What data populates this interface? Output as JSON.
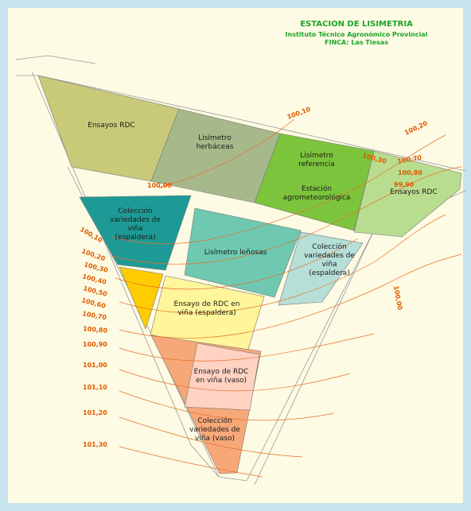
{
  "header": {
    "title": "ESTACION DE LISIMETRIA",
    "institution": "Instituto Técnico Agronómico Provincial",
    "farm": "FINCA: Las Tiesas"
  },
  "plots": [
    {
      "lines": [
        "Ensayos RDC"
      ]
    },
    {
      "lines": [
        "Lisímetro",
        "herbáceas"
      ]
    },
    {
      "lines": [
        "Lisímetro",
        "referencia"
      ]
    },
    {
      "lines": [
        "Estación",
        "agrometeorológica"
      ]
    },
    {
      "lines": [
        "Ensayos RDC"
      ]
    },
    {
      "lines": [
        "Colección",
        "variedades de",
        "viña",
        "(espaldera)"
      ]
    },
    {
      "lines": [
        "Lisímetro leñosas"
      ]
    },
    {
      "lines": [
        "Colección",
        "variedades de",
        "viña",
        "(espaldera)"
      ]
    },
    {
      "lines": [
        "Ensayo de RDC en",
        "viña (espaldera)"
      ]
    },
    {
      "lines": [
        "Ensayo de RDC",
        "en viña (vaso)"
      ]
    },
    {
      "lines": [
        "Colección",
        "variedades de",
        "viña (vaso)"
      ]
    }
  ],
  "contours": [
    "100,10",
    "100,20",
    "100,30",
    "100,70",
    "100,80",
    "99,90",
    "100,00",
    "100,10",
    "100,20",
    "100,30",
    "100,40",
    "100,50",
    "100,60",
    "100,70",
    "100,80",
    "100,90",
    "101,00",
    "101,10",
    "101,20",
    "101,30",
    "100,00"
  ]
}
